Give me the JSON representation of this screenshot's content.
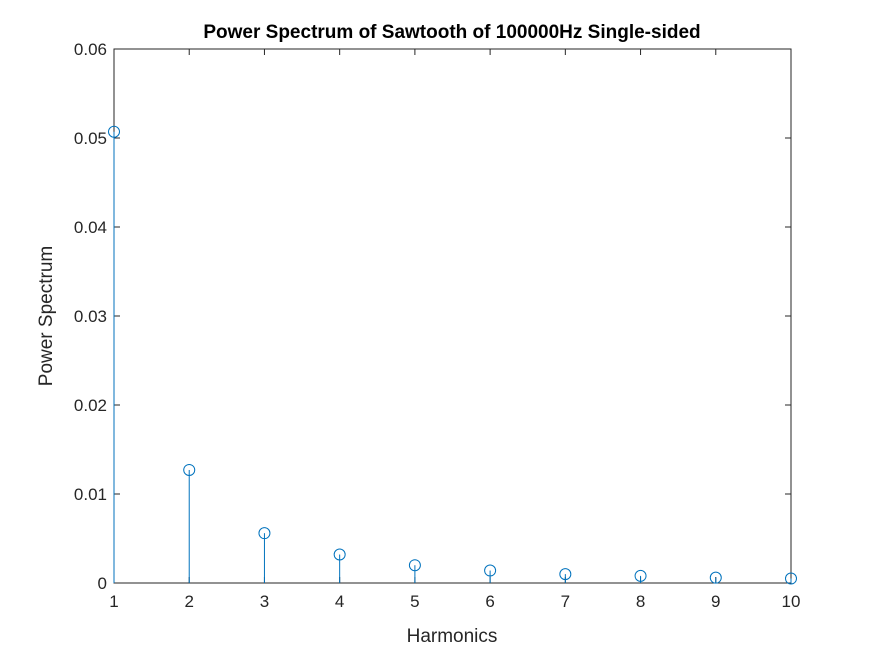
{
  "chart_data": {
    "type": "stem",
    "title": "Power Spectrum of Sawtooth of 100000Hz Single-sided",
    "xlabel": "Harmonics",
    "ylabel": "Power Spectrum",
    "x": [
      1,
      2,
      3,
      4,
      5,
      6,
      7,
      8,
      9,
      10
    ],
    "values": [
      0.0507,
      0.0127,
      0.0056,
      0.0032,
      0.002,
      0.0014,
      0.001,
      0.0008,
      0.0006,
      0.0005
    ],
    "xlim": [
      1,
      10
    ],
    "ylim": [
      0,
      0.06
    ],
    "xticks": [
      "1",
      "2",
      "3",
      "4",
      "5",
      "6",
      "7",
      "8",
      "9",
      "10"
    ],
    "yticks": [
      "0",
      "0.01",
      "0.02",
      "0.03",
      "0.04",
      "0.05",
      "0.06"
    ],
    "ytick_values": [
      0,
      0.01,
      0.02,
      0.03,
      0.04,
      0.05,
      0.06
    ],
    "grid": false,
    "colors": {
      "series": "#0072BD",
      "axes": "#262626",
      "background": "#ffffff"
    },
    "marker": "circle-open"
  }
}
